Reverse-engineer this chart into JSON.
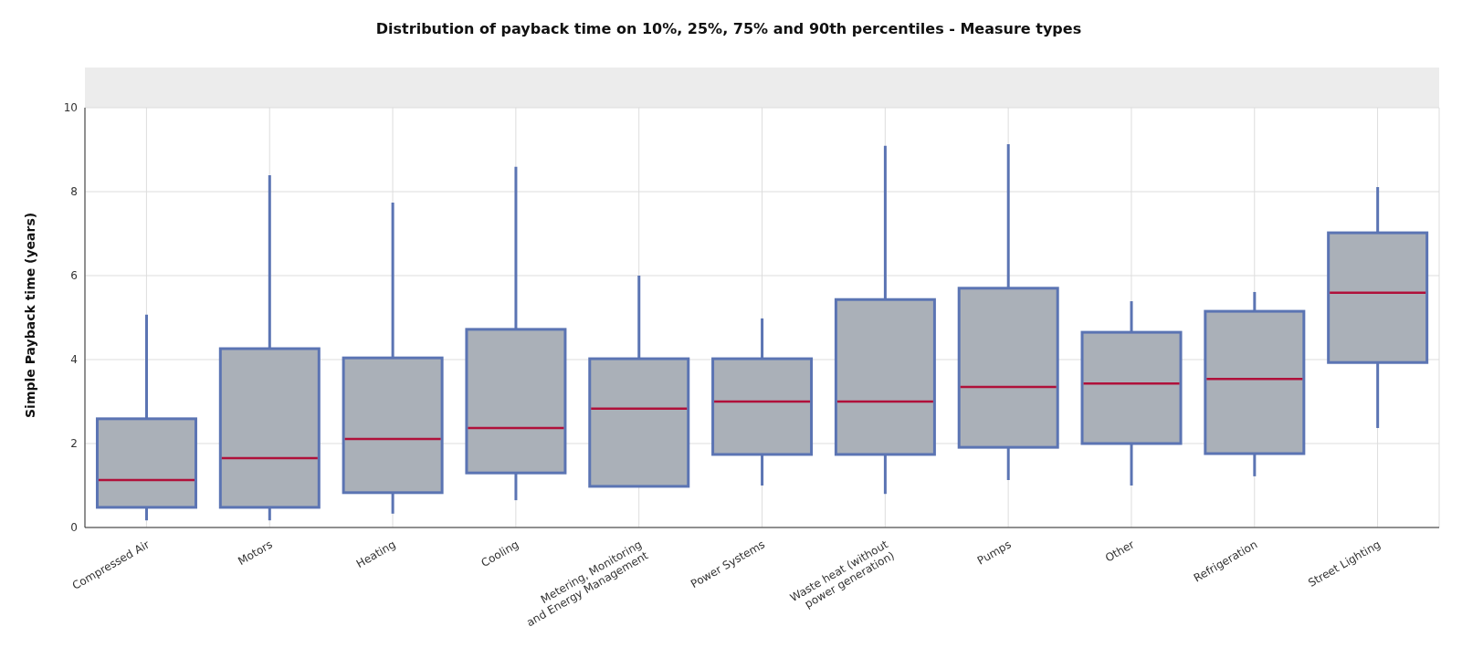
{
  "chart_data": {
    "type": "box",
    "title": "Distribution of payback time on 10%, 25%, 75% and 90th percentiles - Measure types",
    "ylabel": "Simple Payback time (years)",
    "categories": [
      "Compressed Air",
      "Motors",
      "Heating",
      "Cooling",
      "Metering, Monitoring and Energy Management",
      "Power Systems",
      "Waste heat (without power generation)",
      "Pumps",
      "Other",
      "Refrigeration",
      "Street Lighting"
    ],
    "series": [
      {
        "color": "#5b74b3",
        "boxes": [
          {
            "low": 0.17,
            "q1": 0.48,
            "median": 1.13,
            "q3": 2.59,
            "high": 5.07
          },
          {
            "low": 0.17,
            "q1": 0.48,
            "median": 1.65,
            "q3": 4.26,
            "high": 8.39
          },
          {
            "low": 0.33,
            "q1": 0.83,
            "median": 2.11,
            "q3": 4.04,
            "high": 7.74
          },
          {
            "low": 0.65,
            "q1": 1.3,
            "median": 2.37,
            "q3": 4.72,
            "high": 8.59
          },
          {
            "low": 0.98,
            "q1": 0.98,
            "median": 2.83,
            "q3": 4.02,
            "high": 6.0
          },
          {
            "low": 1.0,
            "q1": 1.74,
            "median": 3.0,
            "q3": 4.02,
            "high": 4.98
          },
          {
            "low": 0.8,
            "q1": 1.74,
            "median": 3.0,
            "q3": 5.43,
            "high": 9.09
          },
          {
            "low": 1.13,
            "q1": 1.91,
            "median": 3.35,
            "q3": 5.7,
            "high": 9.13
          },
          {
            "low": 1.0,
            "q1": 2.0,
            "median": 3.43,
            "q3": 4.65,
            "high": 5.39
          },
          {
            "low": 1.22,
            "q1": 1.76,
            "median": 3.54,
            "q3": 5.15,
            "high": 5.61
          },
          {
            "low": 2.37,
            "q1": 3.93,
            "median": 5.59,
            "q3": 7.02,
            "high": 8.11
          }
        ]
      }
    ],
    "ylim": [
      0,
      10
    ],
    "yticks": [
      0,
      2,
      4,
      6,
      8,
      10
    ],
    "grid": true,
    "legend": false
  }
}
